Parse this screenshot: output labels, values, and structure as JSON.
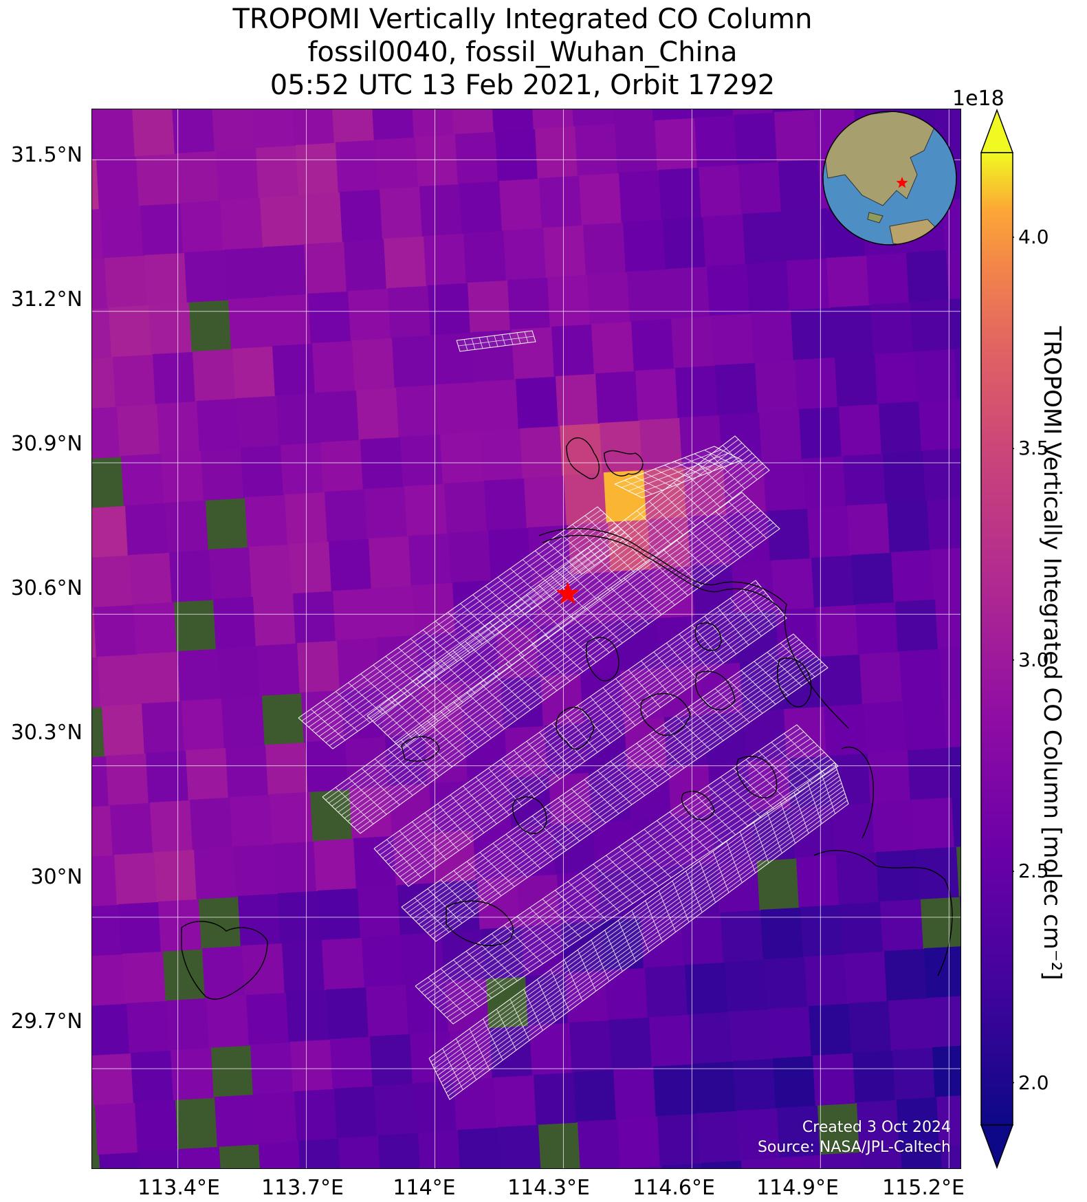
{
  "title": {
    "line1": "TROPOMI Vertically Integrated CO Column",
    "line2": "fossil0040, fossil_Wuhan_China",
    "line3": "05:52 UTC 13 Feb 2021, Orbit 17292"
  },
  "map": {
    "lon_range": [
      113.2,
      115.23
    ],
    "lat_range": [
      29.5,
      31.6
    ],
    "target": {
      "name": "Wuhan",
      "lon": 114.31,
      "lat": 30.64,
      "marker": "red-star"
    },
    "lat_ticks": [
      {
        "value": 31.5,
        "label": "31.5°N"
      },
      {
        "value": 31.2,
        "label": "31.2°N"
      },
      {
        "value": 30.9,
        "label": "30.9°N"
      },
      {
        "value": 30.6,
        "label": "30.6°N"
      },
      {
        "value": 30.3,
        "label": "30.3°N"
      },
      {
        "value": 30.0,
        "label": "30°N"
      },
      {
        "value": 29.7,
        "label": "29.7°N"
      }
    ],
    "lon_ticks": [
      {
        "value": 113.4,
        "label": "113.4°E"
      },
      {
        "value": 113.7,
        "label": "113.7°E"
      },
      {
        "value": 114.0,
        "label": "114°E"
      },
      {
        "value": 114.3,
        "label": "114.3°E"
      },
      {
        "value": 114.6,
        "label": "114.6°E"
      },
      {
        "value": 114.9,
        "label": "114.9°E"
      },
      {
        "value": 115.2,
        "label": "115.2°E"
      }
    ],
    "grid": true,
    "basemap": "satellite-imagery",
    "inset": {
      "type": "globe",
      "marker": "red-star",
      "region": "East Asia"
    }
  },
  "credits": {
    "created": "Created 3 Oct 2024",
    "source": "Source: NASA/JPL-Caltech"
  },
  "colorbar": {
    "label": "TROPOMI Vertically Integrated CO Column [molec cm⁻²]",
    "exponent": "1e18",
    "range": [
      1.9,
      4.2
    ],
    "extend": "both",
    "colormap": "plasma",
    "ticks": [
      {
        "value": 2.0,
        "label": "2.0"
      },
      {
        "value": 2.5,
        "label": "2.5"
      },
      {
        "value": 3.0,
        "label": "3.0"
      },
      {
        "value": 3.5,
        "label": "3.5"
      },
      {
        "value": 4.0,
        "label": "4.0"
      }
    ]
  },
  "colors": {
    "target_marker": "#ff0000",
    "target_grid_outline": "#ffffff",
    "coastline": "#000000",
    "gridline": "#ffffff"
  }
}
